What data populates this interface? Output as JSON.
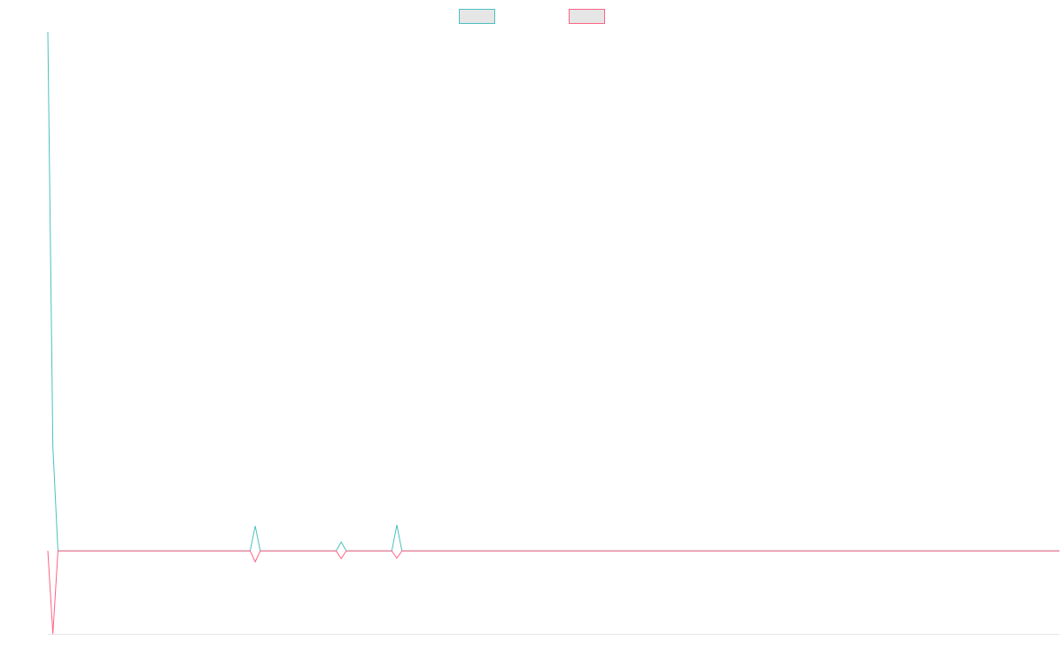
{
  "chart_data": {
    "type": "line",
    "title": "",
    "xlabel": "",
    "ylabel": "",
    "legend": {
      "placement": "top-center",
      "entries": [
        "",
        ""
      ]
    },
    "grid": false,
    "x": [
      0,
      1,
      2,
      40,
      41,
      42,
      57,
      58,
      59,
      68,
      69,
      70,
      200
    ],
    "series": [
      {
        "color": "#4bc0c0",
        "values": [
          100,
          20,
          0,
          0,
          4.8,
          0,
          0,
          1.7,
          0,
          0,
          5,
          0,
          0
        ]
      },
      {
        "color": "#ff6384",
        "values": [
          0,
          -16,
          0,
          0,
          -2.1,
          0,
          0,
          -1.5,
          0,
          0,
          -1.4,
          0,
          0
        ]
      }
    ],
    "xlim": [
      0,
      200
    ],
    "ylim": [
      -16,
      100
    ]
  }
}
